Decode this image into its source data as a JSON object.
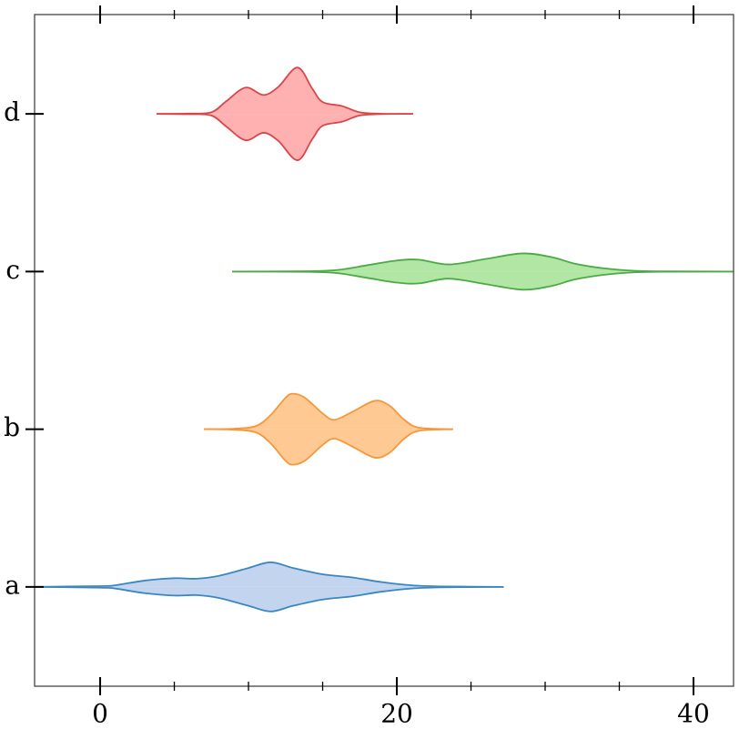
{
  "chart_data": {
    "type": "violin",
    "orientation": "horizontal",
    "categories": [
      "a",
      "b",
      "c",
      "d"
    ],
    "violins": [
      {
        "color": "#3a87c0",
        "fill": "#c2d4ee",
        "x": [
          -4.4,
          0,
          1,
          3,
          5,
          6.5,
          8,
          10,
          11.5,
          13,
          15,
          17,
          19,
          21,
          23,
          27.2
        ],
        "width": [
          0,
          0.005,
          0.01,
          0.04,
          0.055,
          0.052,
          0.07,
          0.12,
          0.156,
          0.12,
          0.08,
          0.06,
          0.03,
          0.01,
          0.003,
          0
        ]
      },
      {
        "color": "#f5973a",
        "fill": "#ffc994",
        "x": [
          7,
          9,
          10.5,
          11.5,
          12.5,
          13,
          13.8,
          15,
          15.8,
          17,
          18.5,
          19.5,
          20.5,
          21.5,
          23.8
        ],
        "width": [
          0,
          0.003,
          0.02,
          0.09,
          0.2,
          0.225,
          0.2,
          0.1,
          0.06,
          0.11,
          0.18,
          0.15,
          0.06,
          0.01,
          0
        ]
      },
      {
        "color": "#4aab44",
        "fill": "#b2e6a4",
        "x": [
          8.9,
          14,
          16,
          18,
          20,
          21.5,
          23.5,
          26,
          28.5,
          30.5,
          32,
          34,
          36,
          38,
          43
        ],
        "width": [
          0,
          0.002,
          0.01,
          0.04,
          0.07,
          0.075,
          0.045,
          0.08,
          0.115,
          0.09,
          0.05,
          0.02,
          0.005,
          0.001,
          0
        ]
      },
      {
        "color": "#d9464a",
        "fill": "#ffb1b1",
        "x": [
          3.8,
          6,
          7.5,
          8.5,
          9.8,
          11,
          12,
          13.3,
          14.3,
          15,
          16.3,
          17.5,
          19,
          21.1
        ],
        "width": [
          0,
          0.002,
          0.01,
          0.08,
          0.167,
          0.12,
          0.17,
          0.294,
          0.16,
          0.075,
          0.05,
          0.01,
          0.001,
          0
        ]
      }
    ],
    "xlim": [
      -4.42,
      42.7
    ],
    "xticks": [
      0,
      20,
      40
    ],
    "xminorticks": [
      5,
      10,
      15,
      25,
      30,
      35
    ],
    "ylim": [
      -0.63,
      3.63
    ]
  }
}
